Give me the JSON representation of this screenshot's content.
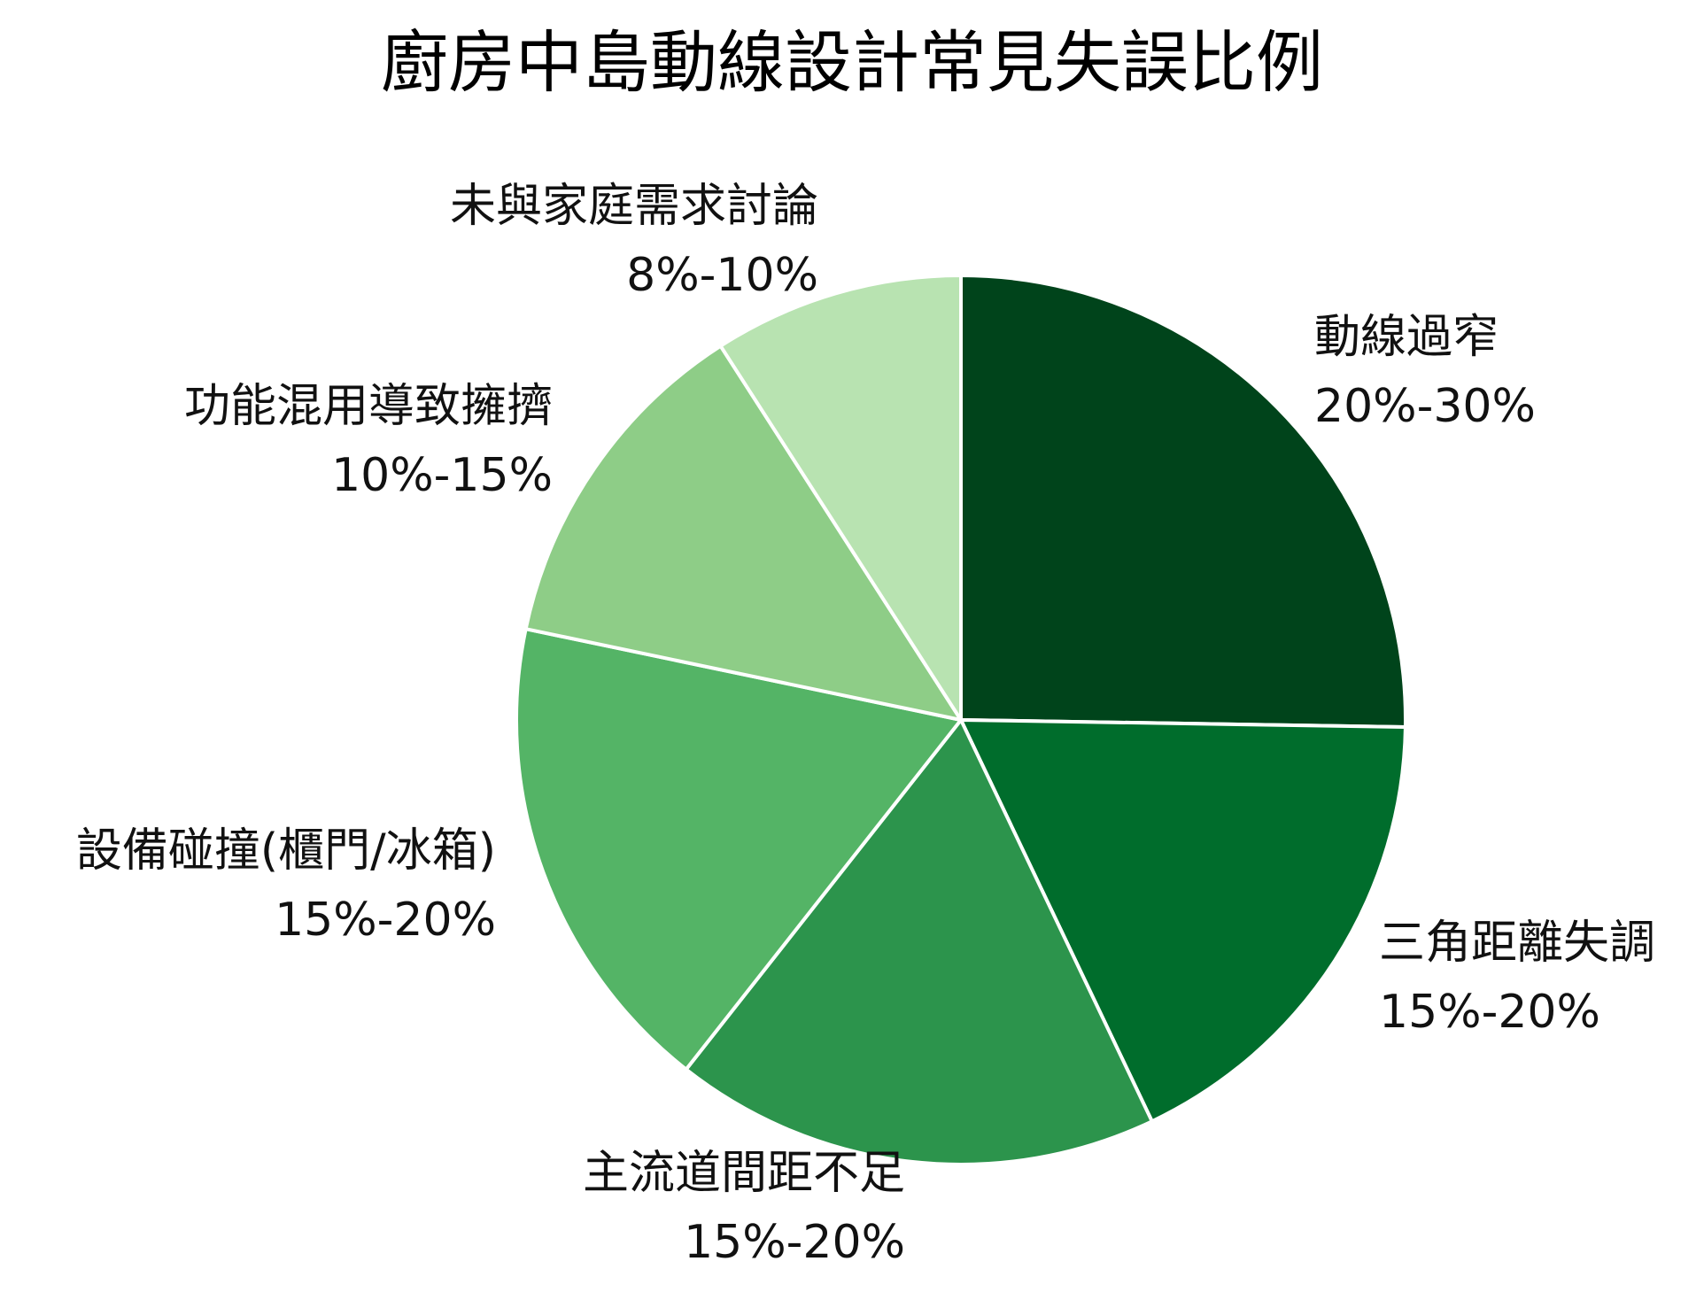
{
  "chart_data": {
    "type": "pie",
    "title": "廚房中島動線設計常見失誤比例",
    "start_angle": "12 o'clock",
    "direction": "clockwise",
    "slices": [
      {
        "label": "動線過窄",
        "value_text": "20%-30%",
        "value": 25,
        "color": "#00441b"
      },
      {
        "label": "三角距離失調",
        "value_text": "15%-20%",
        "value": 17.5,
        "color": "#006d2c"
      },
      {
        "label": "主流道間距不足",
        "value_text": "15%-20%",
        "value": 17.5,
        "color": "#2c944c"
      },
      {
        "label": "設備碰撞(櫃門/冰箱)",
        "value_text": "15%-20%",
        "value": 17.5,
        "color": "#54b466"
      },
      {
        "label": "功能混用導致擁擠",
        "value_text": "10%-15%",
        "value": 12.5,
        "color": "#8ecd87"
      },
      {
        "label": "未與家庭需求討論",
        "value_text": "8%-10%",
        "value": 9,
        "color": "#b8e3b1"
      }
    ],
    "slice_border_color": "#ffffff"
  }
}
